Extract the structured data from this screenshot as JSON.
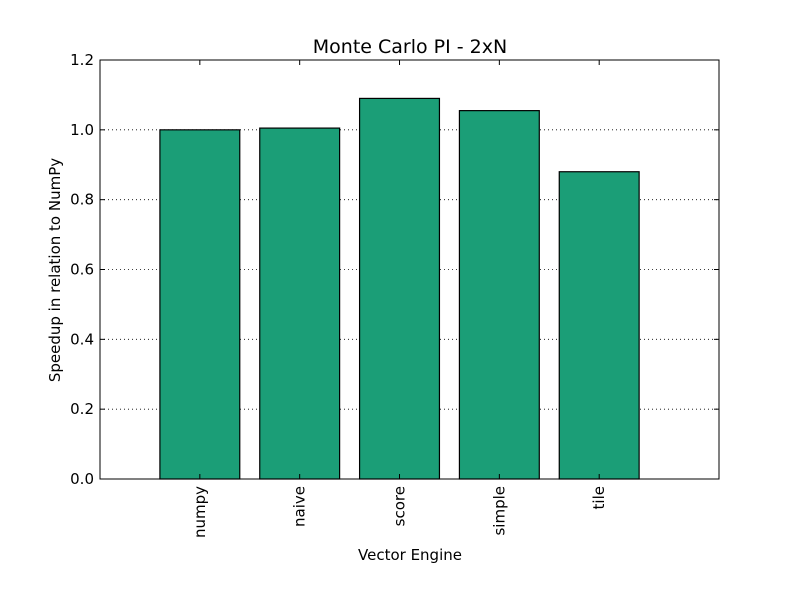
{
  "chart_data": {
    "type": "bar",
    "title": "Monte Carlo PI - 2xN",
    "xlabel": "Vector Engine",
    "ylabel": "Speedup in relation to NumPy",
    "categories": [
      "numpy",
      "naive",
      "score",
      "simple",
      "tile"
    ],
    "values": [
      1.0,
      1.005,
      1.09,
      1.055,
      0.88
    ],
    "ylim": [
      0,
      1.2
    ],
    "yticks": [
      0.0,
      0.2,
      0.4,
      0.6,
      0.8,
      1.0,
      1.2
    ],
    "ytick_labels": [
      "0.0",
      "0.2",
      "0.4",
      "0.6",
      "0.8",
      "1.0",
      "1.2"
    ],
    "grid": "horizontal dotted",
    "legend": "none",
    "bar_color": "#1b9e77",
    "edge_color": "#000000"
  }
}
